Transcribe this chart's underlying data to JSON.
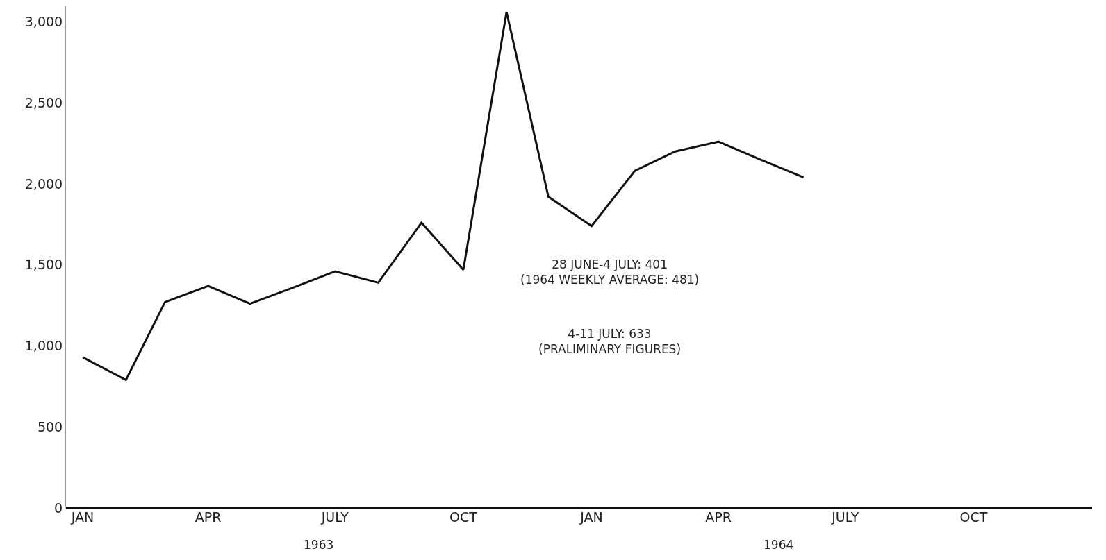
{
  "chart_data": {
    "type": "line",
    "x": [
      "1963-01",
      "1963-02",
      "1963-03",
      "1963-04",
      "1963-05",
      "1963-06",
      "1963-07",
      "1963-08",
      "1963-09",
      "1963-10",
      "1963-11",
      "1963-12",
      "1964-01",
      "1964-02",
      "1964-03",
      "1964-04",
      "1964-05",
      "1964-06"
    ],
    "series": [
      {
        "color": "#111111",
        "values": [
          930,
          790,
          1270,
          1370,
          1260,
          1360,
          1460,
          1390,
          1760,
          1470,
          3060,
          1920,
          1740,
          2080,
          2200,
          2260,
          2150,
          2040
        ]
      }
    ],
    "xlim": [
      "1962-12-20",
      "1964-12-25"
    ],
    "xticks": [
      {
        "value": "1963-01-01",
        "label": "JAN"
      },
      {
        "value": "1963-04-01",
        "label": "APR"
      },
      {
        "value": "1963-07-01",
        "label": "JULY"
      },
      {
        "value": "1963-10-01",
        "label": "OCT"
      },
      {
        "value": "1964-01-01",
        "label": "JAN"
      },
      {
        "value": "1964-04-01",
        "label": "APR"
      },
      {
        "value": "1964-07-01",
        "label": "JULY"
      },
      {
        "value": "1964-10-01",
        "label": "OCT"
      }
    ],
    "ylim": [
      0,
      3100
    ],
    "yticks": [
      0,
      500,
      {
        "value": 1000,
        "label": "1,000"
      },
      {
        "value": 1500,
        "label": "1,500"
      },
      {
        "value": 2000,
        "label": "2,000"
      },
      {
        "value": 2500,
        "label": "2,500"
      },
      {
        "value": 3000,
        "label": "3,000"
      }
    ],
    "annotations": [
      "28 JUNE-4 JULY: 401\n(1964 WEEKLY AVERAGE: 481)",
      "4-11 JULY: 633\n(PRALIMINARY FIGURES)",
      "1963",
      "1964"
    ],
    "marker": "none",
    "line_style": "solid"
  }
}
